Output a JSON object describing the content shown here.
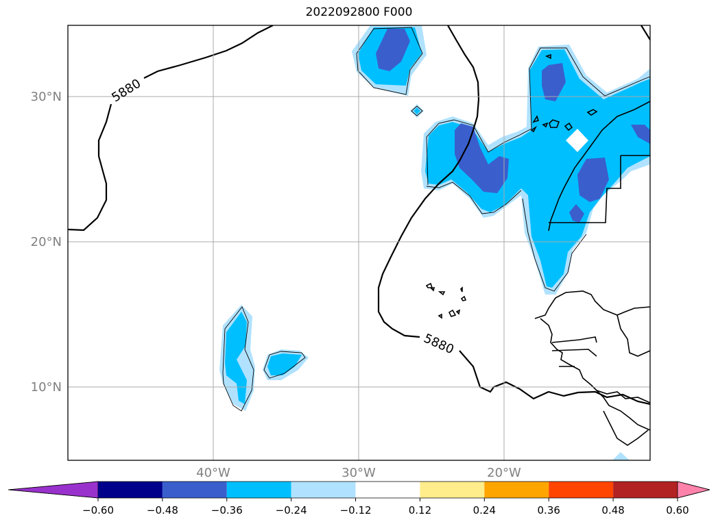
{
  "title": "2022092800 F000",
  "latitude_labels": [
    "30°N",
    "20°N",
    "10°N"
  ],
  "longitude_labels": [
    "40°W",
    "30°W",
    "20°W"
  ],
  "contour_labels": [
    "5880",
    "5880"
  ],
  "colorbar": {
    "ticks": [
      "−0.60",
      "−0.48",
      "−0.36",
      "−0.24",
      "−0.12",
      "0.12",
      "0.24",
      "0.36",
      "0.48",
      "0.60"
    ],
    "colors": [
      "#9932cc",
      "#00008b",
      "#3a5fcd",
      "#00bfff",
      "#b0e2ff",
      "#ffffff",
      "#ffec8b",
      "#ffa500",
      "#ff4500",
      "#b22222",
      "#ff82ab"
    ]
  },
  "shading_colors": {
    "level_1": "#b0e2ff",
    "level_2": "#00bfff",
    "level_3": "#3a5fcd"
  }
}
